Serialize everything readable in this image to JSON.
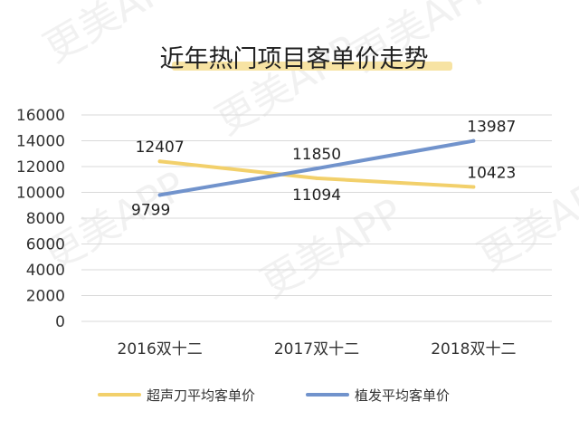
{
  "watermark": "更美APP",
  "chart_data": {
    "type": "line",
    "title": "近年热门项目客单价走势",
    "categories": [
      "2016双十二",
      "2017双十二",
      "2018双十二"
    ],
    "series": [
      {
        "name": "超声刀平均客单价",
        "color": "#f2d06b",
        "values": [
          12407,
          11094,
          10423
        ]
      },
      {
        "name": "植发平均客单价",
        "color": "#7193cc",
        "values": [
          9799,
          11850,
          13987
        ]
      }
    ],
    "ylim": [
      0,
      16000
    ],
    "yticks": [
      0,
      2000,
      4000,
      6000,
      8000,
      10000,
      12000,
      14000,
      16000
    ],
    "grid": true,
    "legend": "bottom",
    "title_highlight_color": "#f7e3a3"
  }
}
